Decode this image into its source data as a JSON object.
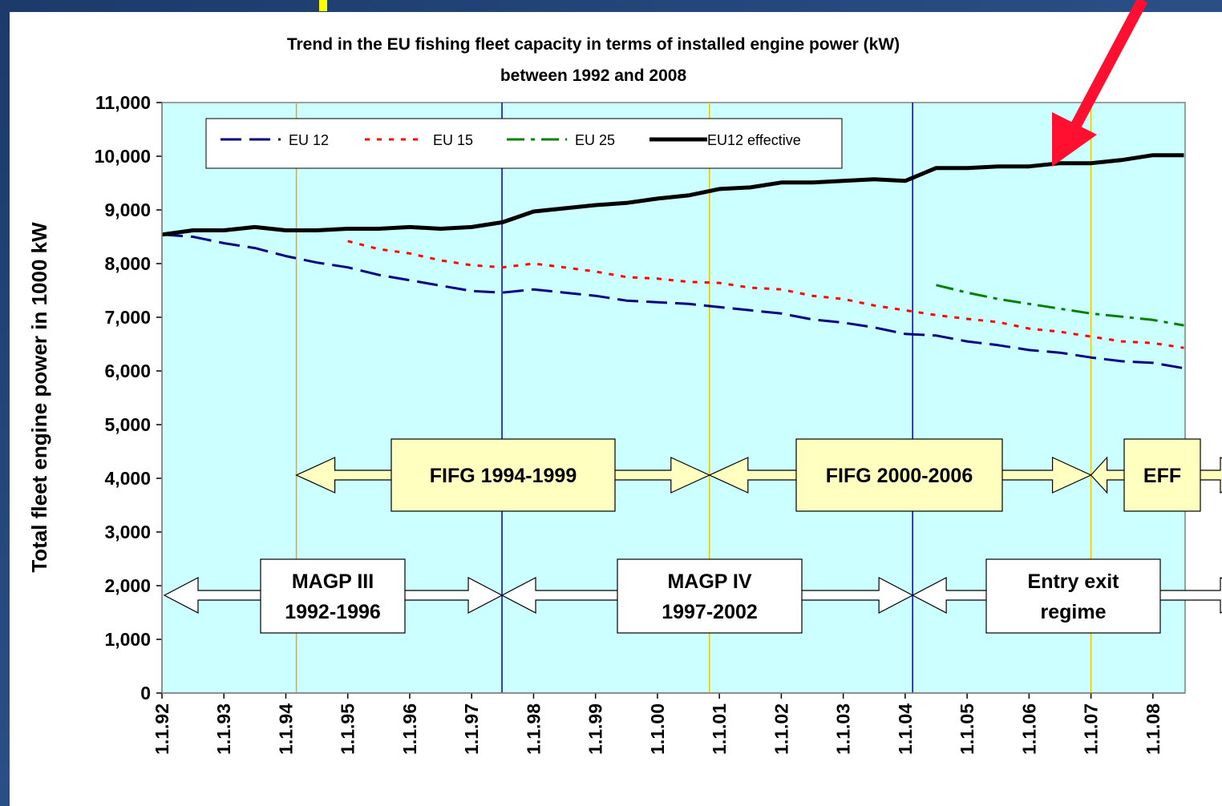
{
  "chart_data": {
    "type": "line",
    "title": [
      "Trend in the EU fishing fleet capacity in terms of installed engine power (kW)",
      "between 1992 and 2008"
    ],
    "ylabel": "Total fleet engine power in 1000 kW",
    "xlim": [
      1992,
      2008.52
    ],
    "xticks": [
      {
        "value": 1992,
        "label": "1.1.92"
      },
      {
        "value": 1993,
        "label": "1.1.93"
      },
      {
        "value": 1994,
        "label": "1.1.94"
      },
      {
        "value": 1995,
        "label": "1.1.95"
      },
      {
        "value": 1996,
        "label": "1.1.96"
      },
      {
        "value": 1997,
        "label": "1.1.97"
      },
      {
        "value": 1998,
        "label": "1.1.98"
      },
      {
        "value": 1999,
        "label": "1.1.99"
      },
      {
        "value": 2000,
        "label": "1.1.00"
      },
      {
        "value": 2001,
        "label": "1.1.01"
      },
      {
        "value": 2002,
        "label": "1.1.02"
      },
      {
        "value": 2003,
        "label": "1.1.03"
      },
      {
        "value": 2004,
        "label": "1.1.04"
      },
      {
        "value": 2005,
        "label": "1.1.05"
      },
      {
        "value": 2006,
        "label": "1.1.06"
      },
      {
        "value": 2007,
        "label": "1.1.07"
      },
      {
        "value": 2008,
        "label": "1.1.08"
      }
    ],
    "ylim": [
      0,
      11000
    ],
    "yticks": [
      0,
      {
        "value": 1000,
        "label": "1,000"
      },
      {
        "value": 2000,
        "label": "2,000"
      },
      {
        "value": 3000,
        "label": "3,000"
      },
      {
        "value": 4000,
        "label": "4,000"
      },
      {
        "value": 5000,
        "label": "5,000"
      },
      {
        "value": 6000,
        "label": "6,000"
      },
      {
        "value": 7000,
        "label": "7,000"
      },
      {
        "value": 8000,
        "label": "8,000"
      },
      {
        "value": 9000,
        "label": "9,000"
      },
      {
        "value": 10000,
        "label": "10,000"
      },
      {
        "value": 11000,
        "label": "11,000"
      }
    ],
    "x": [
      1992,
      1992.5,
      1993,
      1993.5,
      1994,
      1994.5,
      1995,
      1995.5,
      1996,
      1996.5,
      1997,
      1997.5,
      1998,
      1998.5,
      1999,
      1999.5,
      2000,
      2000.5,
      2001,
      2001.5,
      2002,
      2002.5,
      2003,
      2003.5,
      2004,
      2004.5,
      2005,
      2005.5,
      2006,
      2006.5,
      2007,
      2007.5,
      2008,
      2008.5
    ],
    "series": [
      {
        "name": "EU 12",
        "color": "#000080",
        "style": "dash",
        "values": [
          8540,
          8500,
          8380,
          8290,
          8140,
          8020,
          7930,
          7790,
          7690,
          7590,
          7490,
          7460,
          7520,
          7460,
          7400,
          7310,
          7280,
          7250,
          7190,
          7130,
          7070,
          6960,
          6900,
          6810,
          6690,
          6660,
          6550,
          6480,
          6390,
          6340,
          6250,
          6180,
          6150,
          6050
        ]
      },
      {
        "name": "EU 15",
        "color": "#ff0000",
        "style": "dot",
        "values": [
          null,
          null,
          null,
          null,
          null,
          null,
          8420,
          8270,
          8190,
          8060,
          7970,
          7930,
          8000,
          7930,
          7850,
          7750,
          7720,
          7660,
          7640,
          7550,
          7520,
          7400,
          7340,
          7220,
          7130,
          7040,
          6970,
          6910,
          6790,
          6730,
          6640,
          6550,
          6520,
          6430
        ]
      },
      {
        "name": "EU 25",
        "color": "#008000",
        "style": "dashdot",
        "values": [
          null,
          null,
          null,
          null,
          null,
          null,
          null,
          null,
          null,
          null,
          null,
          null,
          null,
          null,
          null,
          null,
          null,
          null,
          null,
          null,
          null,
          null,
          null,
          null,
          null,
          7600,
          7460,
          7340,
          7250,
          7160,
          7070,
          7010,
          6950,
          6850
        ]
      },
      {
        "name": "EU12 effective",
        "color": "#000000",
        "style": "solid",
        "values": [
          8540,
          8620,
          8620,
          8680,
          8620,
          8620,
          8650,
          8650,
          8680,
          8650,
          8680,
          8770,
          8970,
          9030,
          9090,
          9130,
          9210,
          9270,
          9390,
          9420,
          9510,
          9510,
          9540,
          9570,
          9540,
          9780,
          9780,
          9810,
          9810,
          9870,
          9870,
          9930,
          10020,
          10020
        ]
      }
    ],
    "markers": [
      {
        "x": 1994.17,
        "color": "#f0a020"
      },
      {
        "x": 1997.49,
        "color": "#0000c0"
      },
      {
        "x": 2000.84,
        "color": "#e8c800"
      },
      {
        "x": 2004.12,
        "color": "#0000c0"
      },
      {
        "x": 2007.0,
        "color": "#e8c800"
      }
    ],
    "annotations": [
      {
        "lines": [
          "FIFG 1994-1999"
        ]
      },
      {
        "lines": [
          "FIFG 2000-2006"
        ]
      },
      {
        "lines": [
          "EFF"
        ]
      },
      {
        "lines": [
          "MAGP III",
          "1992-1996"
        ]
      },
      {
        "lines": [
          "MAGP IV",
          "1997-2002"
        ]
      },
      {
        "lines": [
          "Entry exit",
          "regime"
        ]
      }
    ]
  }
}
